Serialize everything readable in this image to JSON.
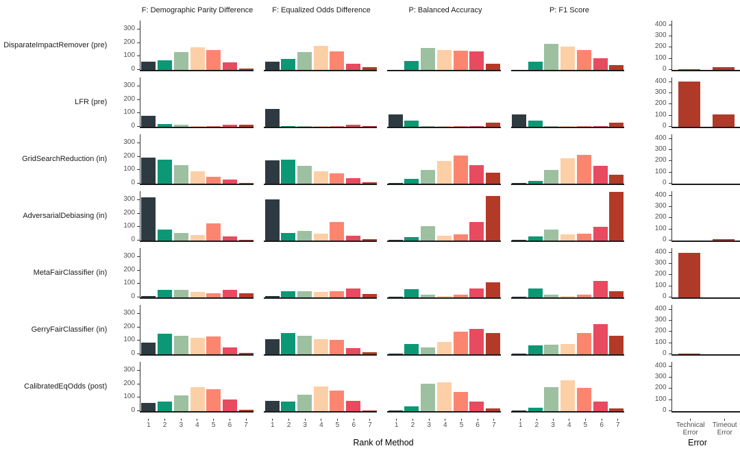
{
  "chart_data": {
    "type": "bar",
    "description": "Faceted histograms of rank frequencies per fairness method, plus error counts",
    "facet_columns": [
      "F: Demographic Parity Difference",
      "F: Equalized Odds Difference",
      "P: Balanced Accuracy",
      "P: F1 Score"
    ],
    "metric_keys": [
      "dpd",
      "eod",
      "ba",
      "f1"
    ],
    "x_categories_main": [
      "1",
      "2",
      "3",
      "4",
      "5",
      "6",
      "7"
    ],
    "x_categories_error": [
      "Technical\nError",
      "Timeout\nError"
    ],
    "xlabel_main": "Rank of Method",
    "xlabel_error": "Error",
    "y_ticks_main": [
      0,
      100,
      200,
      300
    ],
    "y_ticks_error": [
      0,
      100,
      200,
      300,
      400
    ],
    "ylim_main": [
      0,
      365
    ],
    "ylim_error": [
      0,
      440
    ],
    "grid": false,
    "legend": "none",
    "rank_colors": [
      "#2d3a42",
      "#0c9875",
      "#9dc0a0",
      "#fdcfa6",
      "#fc8570",
      "#e84a5f",
      "#b43a28"
    ],
    "error_bar_color": "#b03a28",
    "rows": [
      {
        "label": "DisparateImpactRemover (pre)",
        "dpd": [
          62,
          72,
          130,
          165,
          145,
          57,
          10
        ],
        "eod": [
          62,
          80,
          130,
          175,
          135,
          45,
          20
        ],
        "ba": [
          0,
          65,
          160,
          148,
          142,
          135,
          45
        ],
        "f1": [
          0,
          60,
          192,
          172,
          145,
          85,
          38
        ],
        "error": [
          8,
          27
        ]
      },
      {
        "label": "LFR (pre)",
        "dpd": [
          80,
          20,
          15,
          7,
          3,
          15,
          15
        ],
        "eod": [
          130,
          4,
          3,
          2,
          2,
          15,
          4
        ],
        "ba": [
          92,
          45,
          3,
          2,
          2,
          2,
          30
        ],
        "f1": [
          90,
          45,
          3,
          2,
          2,
          2,
          32
        ],
        "error": [
          403,
          112
        ]
      },
      {
        "label": "GridSearchReduction (in)",
        "dpd": [
          195,
          175,
          135,
          90,
          50,
          30,
          5
        ],
        "eod": [
          170,
          175,
          130,
          90,
          75,
          40,
          8
        ],
        "ba": [
          3,
          35,
          100,
          165,
          210,
          135,
          80
        ],
        "f1": [
          3,
          18,
          100,
          190,
          215,
          130,
          68
        ],
        "error": [
          0,
          0
        ]
      },
      {
        "label": "AdversarialDebiasing (in)",
        "dpd": [
          320,
          80,
          58,
          40,
          128,
          33,
          2
        ],
        "eod": [
          305,
          58,
          70,
          50,
          138,
          35,
          8
        ],
        "ba": [
          3,
          25,
          105,
          35,
          45,
          135,
          330
        ],
        "f1": [
          3,
          30,
          80,
          45,
          50,
          100,
          360
        ],
        "error": [
          0,
          15
        ]
      },
      {
        "label": "MetaFairClassifier (in)",
        "dpd": [
          12,
          55,
          58,
          40,
          30,
          55,
          33
        ],
        "eod": [
          12,
          45,
          45,
          42,
          48,
          65,
          25
        ],
        "ba": [
          3,
          60,
          18,
          10,
          22,
          65,
          110
        ],
        "f1": [
          3,
          68,
          18,
          12,
          20,
          120,
          48
        ],
        "error": [
          398,
          0
        ]
      },
      {
        "label": "GerryFairClassifier (in)",
        "dpd": [
          85,
          150,
          135,
          122,
          130,
          50,
          8
        ],
        "eod": [
          113,
          158,
          135,
          112,
          108,
          45,
          13
        ],
        "ba": [
          3,
          75,
          50,
          90,
          168,
          188,
          158
        ],
        "f1": [
          3,
          68,
          70,
          78,
          155,
          225,
          135
        ],
        "error": [
          2,
          0
        ]
      },
      {
        "label": "CalibratedEqOdds (post)",
        "dpd": [
          60,
          72,
          115,
          178,
          160,
          85,
          10
        ],
        "eod": [
          78,
          72,
          120,
          185,
          150,
          75,
          5
        ],
        "ba": [
          3,
          35,
          205,
          212,
          140,
          70,
          18
        ],
        "f1": [
          3,
          25,
          180,
          230,
          172,
          70,
          18
        ],
        "error": [
          0,
          0
        ]
      }
    ]
  }
}
